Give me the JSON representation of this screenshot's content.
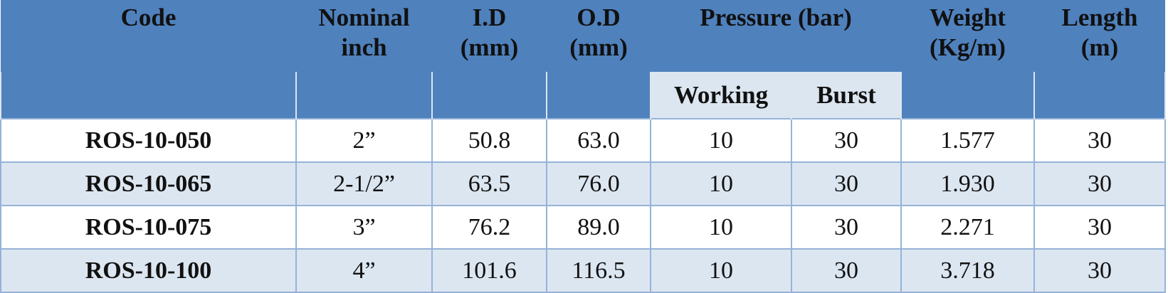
{
  "table": {
    "header": [
      "Code",
      "Nominal\ninch",
      "I.D\n(mm)",
      "O.D\n(mm)",
      "Pressure (bar)",
      "Weight\n(Kg/m)",
      "Length\n(m)"
    ],
    "subheader": [
      "Working",
      "Burst"
    ],
    "rows": [
      [
        "ROS-10-050",
        "2”",
        "50.8",
        "63.0",
        "10",
        "30",
        "1.577",
        "30"
      ],
      [
        "ROS-10-065",
        "2-1/2”",
        "63.5",
        "76.0",
        "10",
        "30",
        "1.930",
        "30"
      ],
      [
        "ROS-10-075",
        "3”",
        "76.2",
        "89.0",
        "10",
        "30",
        "2.271",
        "30"
      ],
      [
        "ROS-10-100",
        "4”",
        "101.6",
        "116.5",
        "10",
        "30",
        "3.718",
        "30"
      ]
    ]
  }
}
